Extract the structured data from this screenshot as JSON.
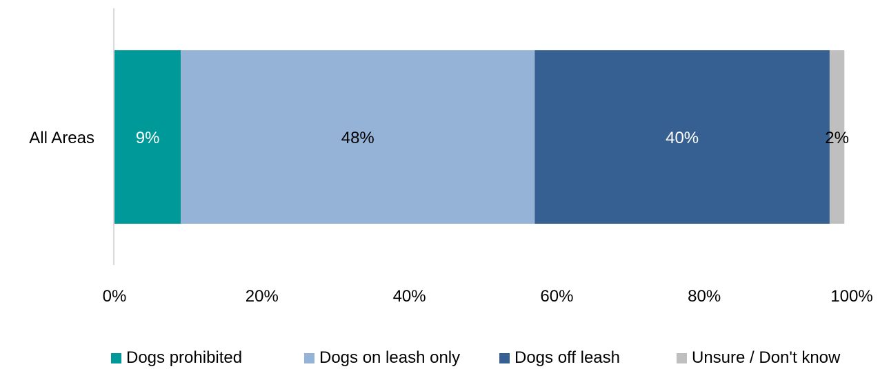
{
  "chart_data": {
    "type": "bar",
    "orientation": "horizontal",
    "stacked": true,
    "categories": [
      "All Areas"
    ],
    "series": [
      {
        "name": "Dogs prohibited",
        "values": [
          9
        ],
        "label": "9%",
        "color": "#009999",
        "label_color": "#ffffff"
      },
      {
        "name": "Dogs on leash only",
        "values": [
          48
        ],
        "label": "48%",
        "color": "#95B3D7",
        "label_color": "#000000"
      },
      {
        "name": "Dogs off leash",
        "values": [
          40
        ],
        "label": "40%",
        "color": "#376092",
        "label_color": "#ffffff"
      },
      {
        "name": "Unsure / Don't know",
        "values": [
          2
        ],
        "label": "2%",
        "color": "#BFBFBF",
        "label_color": "#000000"
      }
    ],
    "xlim": [
      0,
      100
    ],
    "x_ticks": [
      "0%",
      "20%",
      "40%",
      "60%",
      "80%",
      "100%"
    ],
    "grid": false,
    "legend_position": "bottom"
  }
}
